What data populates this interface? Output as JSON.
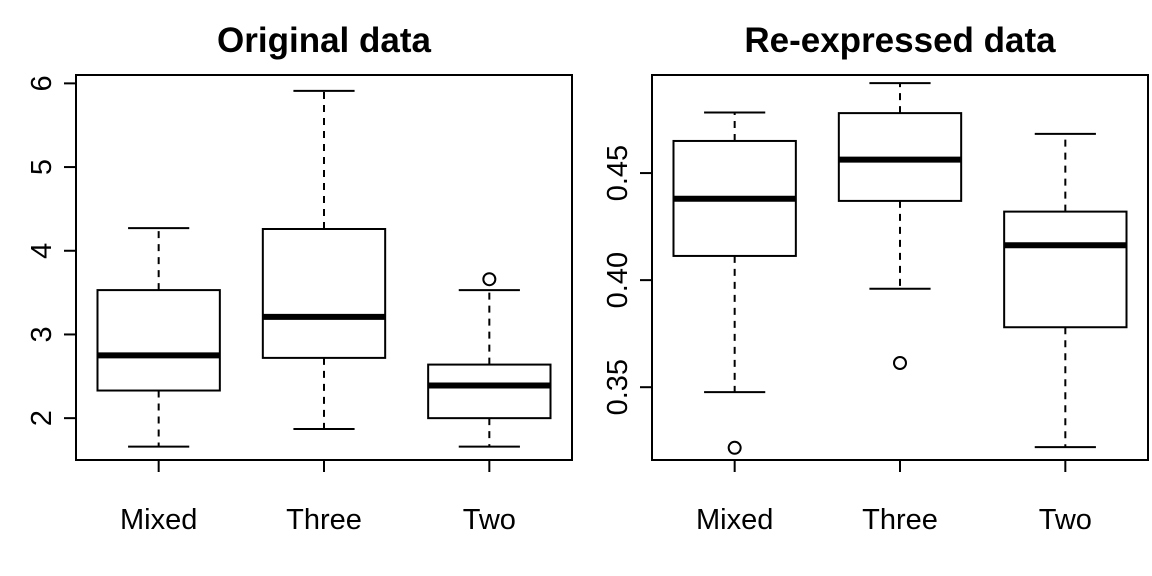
{
  "chart_data": [
    {
      "type": "boxplot",
      "title": "Original data",
      "xlabel": "",
      "ylabel": "",
      "categories": [
        "Mixed",
        "Three",
        "Two"
      ],
      "ylim": [
        1.5,
        6.1
      ],
      "yticks": [
        2,
        3,
        4,
        5,
        6
      ],
      "ytick_labels": [
        "2",
        "3",
        "4",
        "5",
        "6"
      ],
      "boxes": [
        {
          "name": "Mixed",
          "whisker_low": 1.66,
          "q1": 2.33,
          "median": 2.75,
          "q3": 3.53,
          "whisker_high": 4.27,
          "outliers": []
        },
        {
          "name": "Three",
          "whisker_low": 1.87,
          "q1": 2.72,
          "median": 3.21,
          "q3": 4.26,
          "whisker_high": 5.91,
          "outliers": []
        },
        {
          "name": "Two",
          "whisker_low": 1.66,
          "q1": 2.0,
          "median": 2.39,
          "q3": 2.64,
          "whisker_high": 3.53,
          "outliers": [
            3.66
          ]
        }
      ]
    },
    {
      "type": "boxplot",
      "title": "Re-expressed data",
      "xlabel": "",
      "ylabel": "",
      "categories": [
        "Mixed",
        "Three",
        "Two"
      ],
      "ylim": [
        0.316,
        0.4958
      ],
      "yticks": [
        0.35,
        0.4,
        0.45
      ],
      "ytick_labels": [
        "0.35",
        "0.40",
        "0.45"
      ],
      "boxes": [
        {
          "name": "Mixed",
          "whisker_low": 0.3477,
          "q1": 0.4113,
          "median": 0.438,
          "q3": 0.465,
          "whisker_high": 0.4783,
          "outliers": [
            0.3217
          ]
        },
        {
          "name": "Three",
          "whisker_low": 0.396,
          "q1": 0.437,
          "median": 0.4563,
          "q3": 0.478,
          "whisker_high": 0.492,
          "outliers": [
            0.3613
          ]
        },
        {
          "name": "Two",
          "whisker_low": 0.322,
          "q1": 0.378,
          "median": 0.4163,
          "q3": 0.432,
          "whisker_high": 0.4683,
          "outliers": []
        }
      ]
    }
  ]
}
